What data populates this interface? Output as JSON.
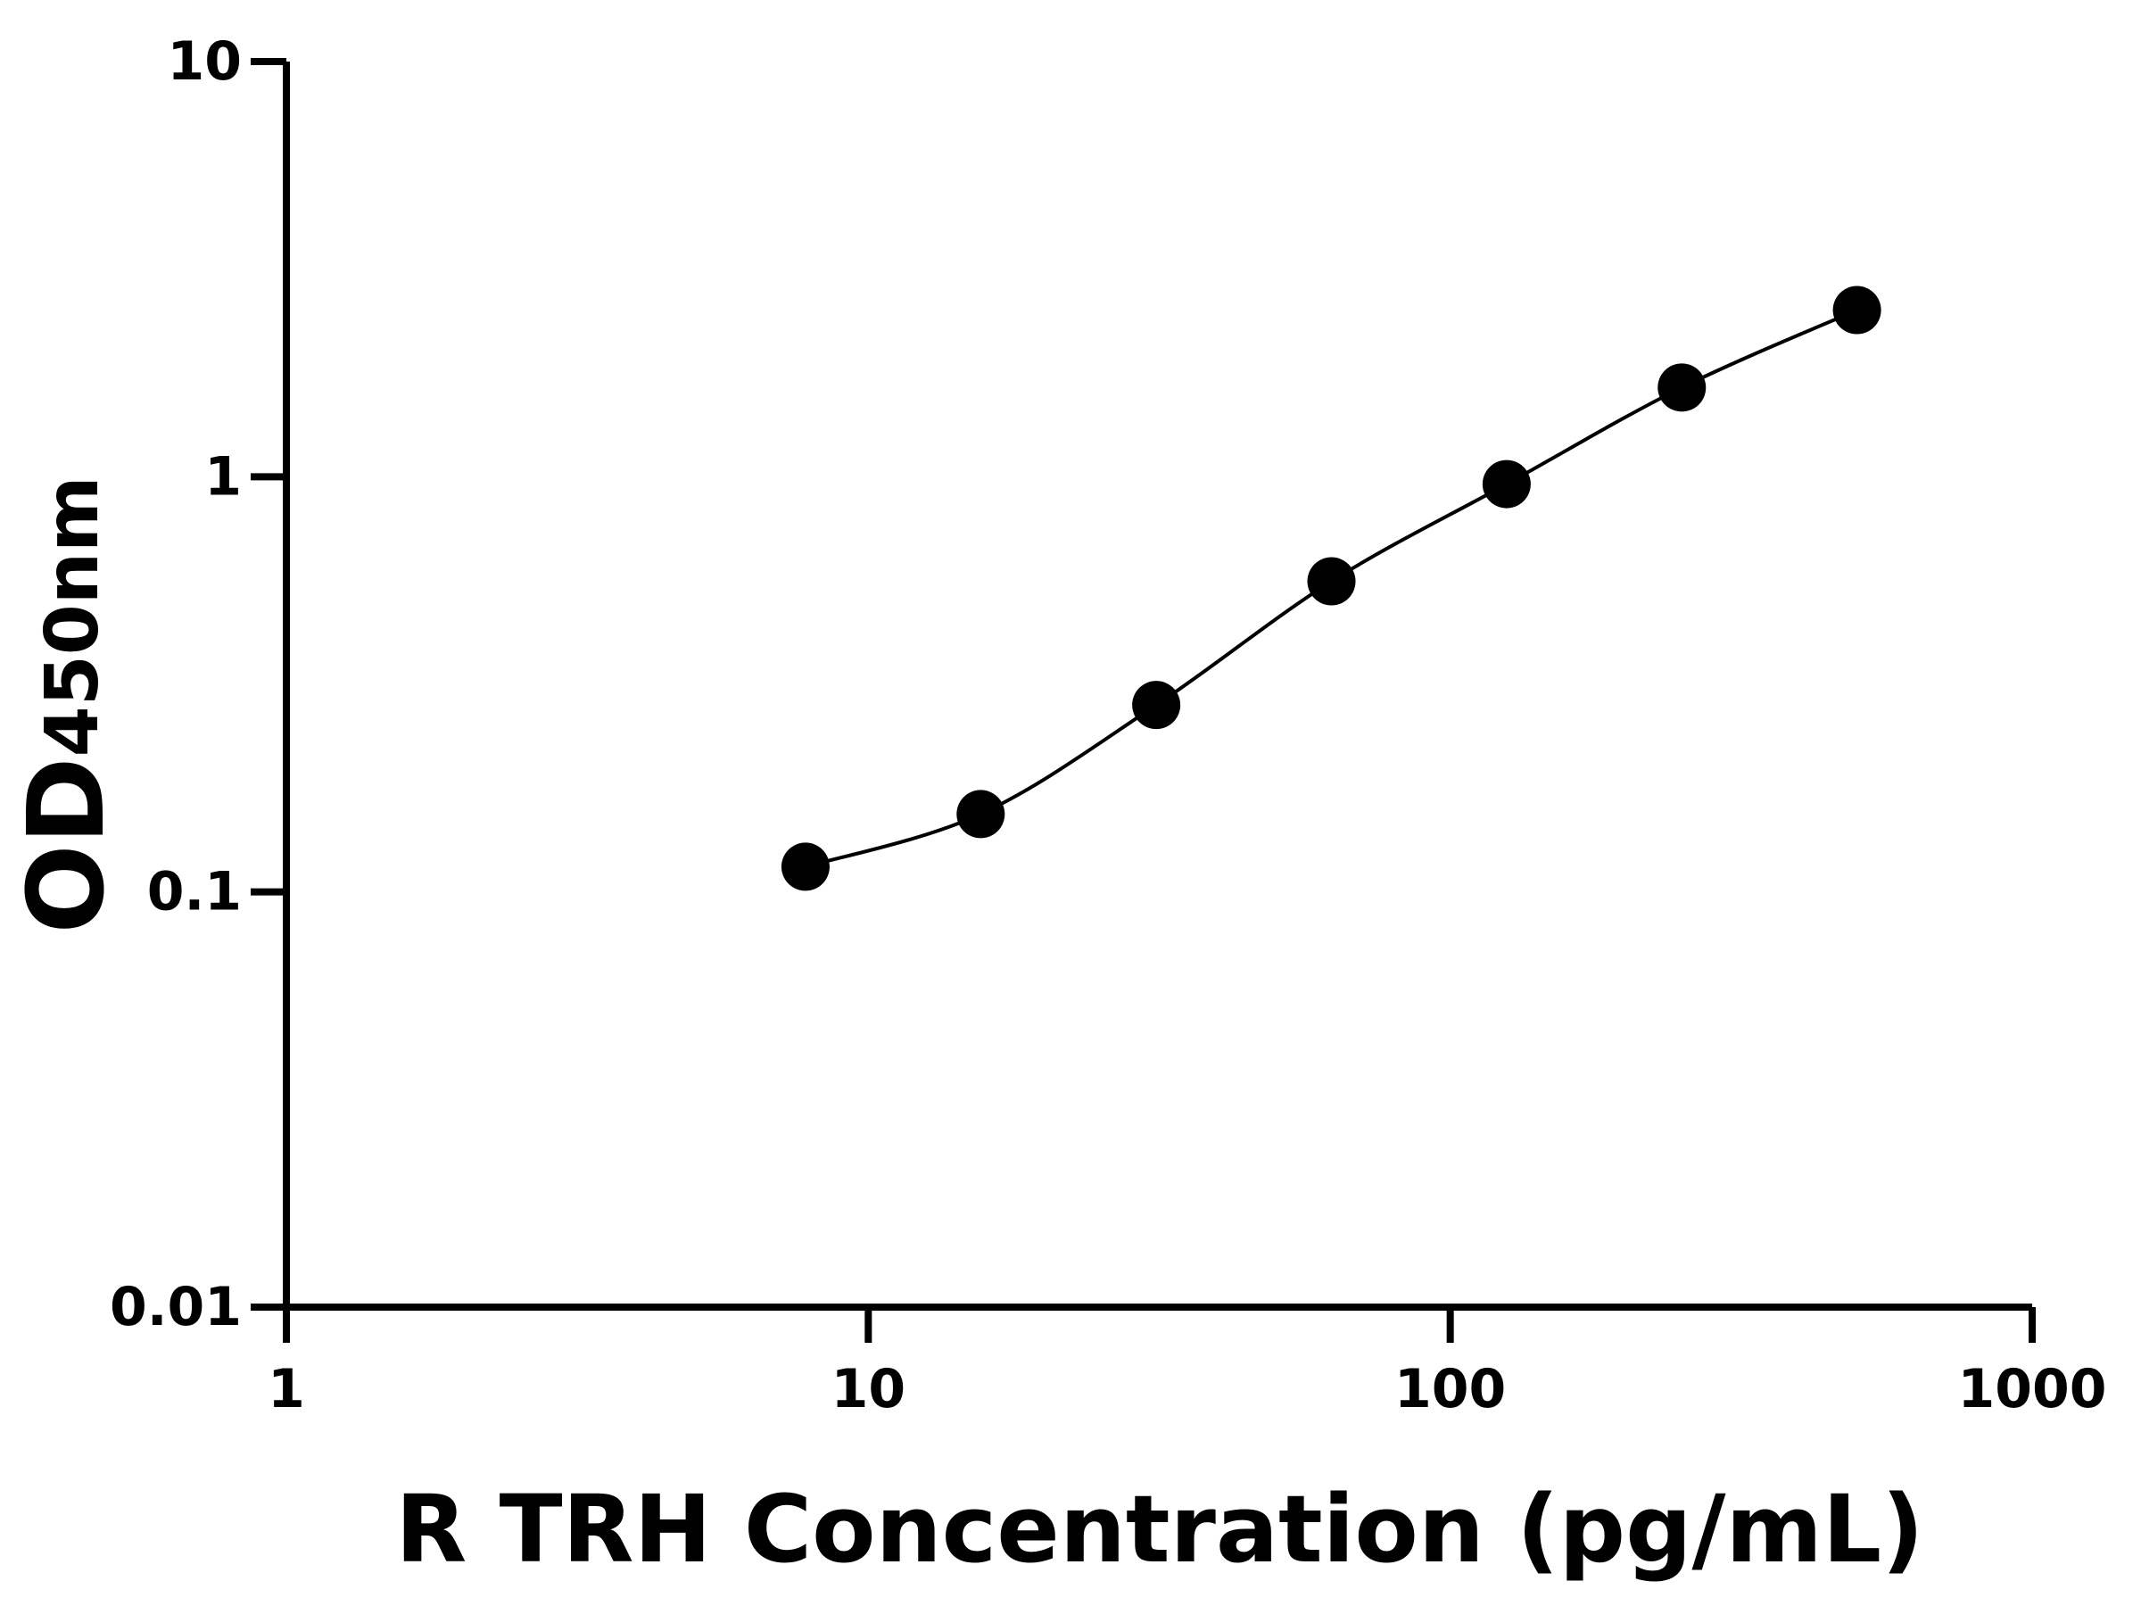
{
  "chart_data": {
    "type": "scatter",
    "x_label": "R TRH Concentration (pg/mL)",
    "y_label": "OD",
    "y_label_subscript": "450nm",
    "x_log": true,
    "y_log": true,
    "line": true,
    "color": "#000000",
    "x": [
      7.8,
      15.6,
      31.25,
      62.5,
      125,
      250,
      500
    ],
    "values": [
      0.115,
      0.154,
      0.282,
      0.56,
      0.96,
      1.64,
      2.52
    ],
    "xlim": [
      1,
      1000
    ],
    "xticks": [
      1,
      10,
      100,
      1000
    ],
    "ylim": [
      0.01,
      10
    ],
    "yticks": [
      0.01,
      0.1,
      1,
      10
    ]
  }
}
